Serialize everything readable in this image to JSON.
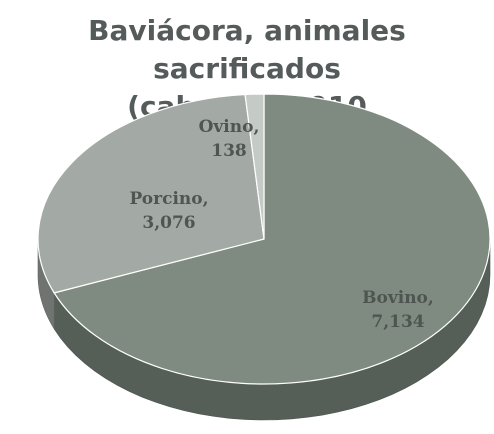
{
  "chart_data": {
    "type": "pie",
    "title": "Baviácora, animales sacrificados (cabezas) 2010",
    "title_lines": [
      "Baviácora, animales sacrificados",
      "(cabezas) 2010"
    ],
    "slices": [
      {
        "label": "Bovino",
        "value": 7134,
        "display_value": "7,134",
        "color": "#7f8b80"
      },
      {
        "label": "Porcino",
        "value": 3076,
        "display_value": "3,076",
        "color": "#a3aaa5"
      },
      {
        "label": "Ovino",
        "value": 138,
        "display_value": "138",
        "color": "#c4cac6"
      }
    ],
    "legend": "none",
    "style": "3d"
  }
}
